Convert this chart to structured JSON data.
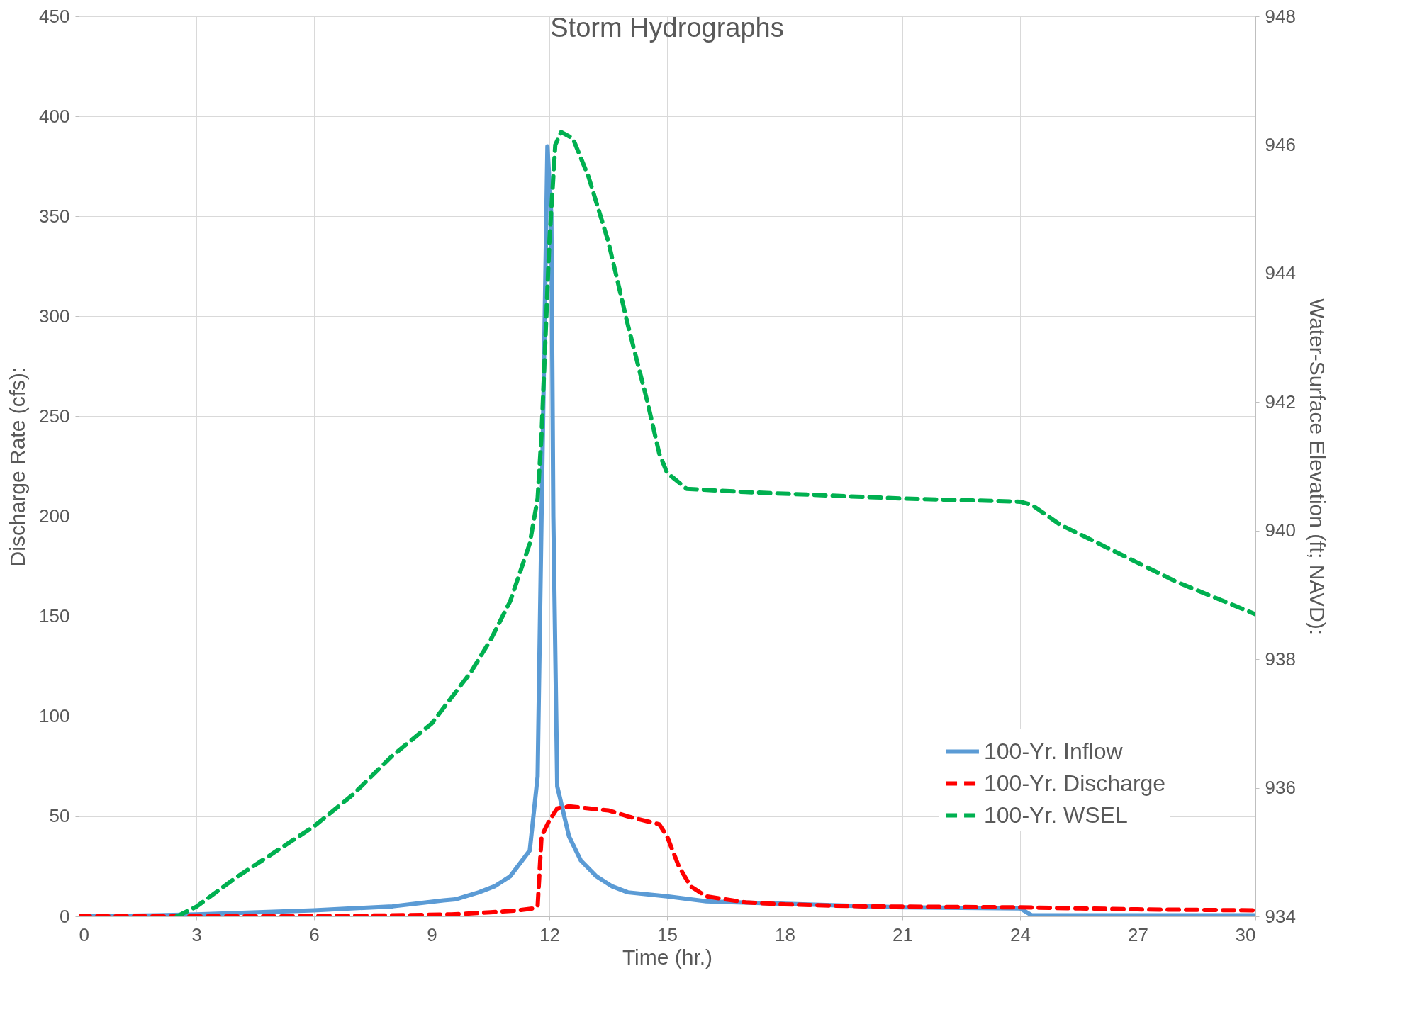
{
  "chart_data": {
    "type": "line",
    "title": "Storm Hydrographs",
    "xlabel": "Time (hr.)",
    "ylabel": "Discharge Rate (cfs):",
    "y2label": "Water-Surface Elevation (ft; NAVD):",
    "xlim": [
      0,
      30
    ],
    "xticks": [
      0,
      3,
      6,
      9,
      12,
      15,
      18,
      21,
      24,
      27,
      30
    ],
    "ylim": [
      0,
      450
    ],
    "yticks": [
      0,
      50,
      100,
      150,
      200,
      250,
      300,
      350,
      400,
      450
    ],
    "y2lim": [
      934,
      948
    ],
    "y2ticks": [
      934,
      936,
      938,
      940,
      942,
      944,
      946,
      948
    ],
    "grid": true,
    "legend": "bottom right",
    "series": [
      {
        "name": "100-Yr. Inflow",
        "color": "#5b9bd5",
        "line_style": "solid",
        "x": [
          0,
          2,
          3,
          6,
          8,
          9.3,
          9.6,
          10.2,
          10.6,
          11,
          11.5,
          11.7,
          11.8,
          11.95,
          12.05,
          12.1,
          12.2,
          12.5,
          12.8,
          13.2,
          13.6,
          14,
          15,
          16,
          21,
          24,
          24.3,
          30
        ],
        "values": [
          0,
          0.5,
          1,
          3,
          5,
          8,
          8.5,
          12,
          15,
          20,
          33,
          70,
          200,
          385,
          350,
          200,
          65,
          40,
          28,
          20,
          15,
          12,
          10,
          7.5,
          4.5,
          4,
          0.5,
          0.5
        ]
      },
      {
        "name": "100-Yr. Discharge",
        "color": "#ff0000",
        "line_style": "dashed",
        "x": [
          0,
          5,
          8,
          9.5,
          10.5,
          11.2,
          11.6,
          11.7,
          11.8,
          12,
          12.2,
          12.5,
          13.5,
          14,
          14.8,
          15,
          15.3,
          15.6,
          16,
          17,
          18,
          20,
          24,
          27,
          30
        ],
        "values": [
          0,
          0,
          0.5,
          1,
          2,
          3,
          4,
          5,
          40,
          48,
          54,
          55,
          53,
          50,
          46,
          40,
          25,
          15,
          10,
          7,
          6,
          5,
          4.5,
          3.5,
          3
        ]
      },
      {
        "name": "100-Yr. WSEL",
        "color": "#00b050",
        "line_style": "dashed",
        "axis": "y2",
        "x": [
          2.5,
          3,
          4,
          5,
          6,
          7,
          8,
          9,
          9.5,
          10,
          10.5,
          11,
          11.5,
          11.7,
          11.8,
          11.9,
          12,
          12.15,
          12.3,
          12.6,
          13,
          13.5,
          14,
          14.5,
          14.8,
          15,
          15.5,
          17,
          21,
          24,
          24.3,
          25,
          27,
          28,
          30
        ],
        "values": [
          934.0,
          934.15,
          934.6,
          935.0,
          935.4,
          935.9,
          936.5,
          937.0,
          937.4,
          937.8,
          938.3,
          938.9,
          939.8,
          940.5,
          941.5,
          943,
          944.5,
          946.0,
          946.2,
          946.1,
          945.5,
          944.5,
          943.2,
          942.0,
          941.2,
          940.9,
          940.65,
          940.6,
          940.5,
          940.45,
          940.4,
          940.1,
          939.5,
          939.2,
          938.7
        ]
      }
    ]
  }
}
